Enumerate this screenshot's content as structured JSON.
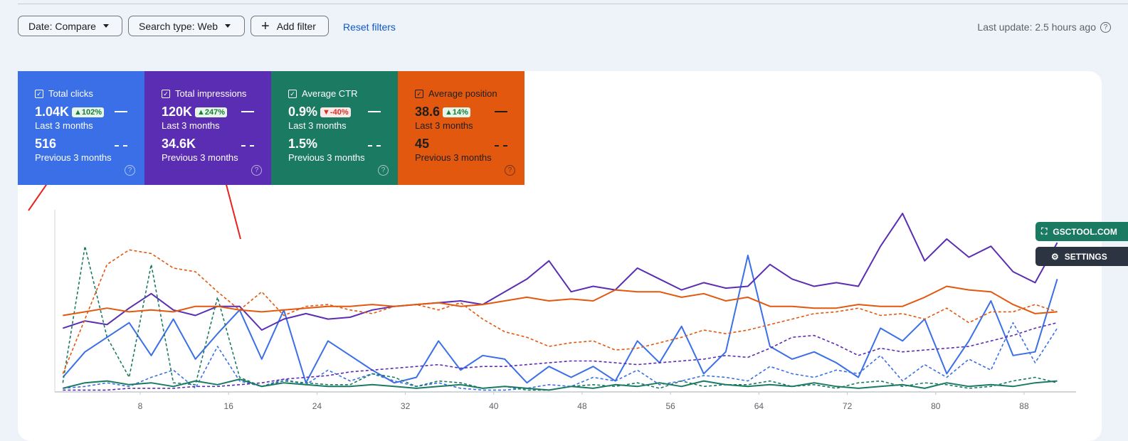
{
  "toolbar": {
    "date_filter": "Date: Compare",
    "search_type": "Search type: Web",
    "add_filter": "Add filter",
    "reset": "Reset filters",
    "last_update": "Last update: 2.5 hours ago"
  },
  "cards": [
    {
      "label": "Total clicks",
      "current": "1.04K",
      "change": "▲102%",
      "direction": "up",
      "current_period": "Last 3 months",
      "previous": "516",
      "previous_period": "Previous 3 months",
      "color": "#3a6fe8",
      "text_color": "#ffffff"
    },
    {
      "label": "Total impressions",
      "current": "120K",
      "change": "▲247%",
      "direction": "up",
      "current_period": "Last 3 months",
      "previous": "34.6K",
      "previous_period": "Previous 3 months",
      "color": "#5b2db3",
      "text_color": "#ffffff"
    },
    {
      "label": "Average CTR",
      "current": "0.9%",
      "change": "▼-40%",
      "direction": "down",
      "current_period": "Last 3 months",
      "previous": "1.5%",
      "previous_period": "Previous 3 months",
      "color": "#1b7a62",
      "text_color": "#ffffff"
    },
    {
      "label": "Average position",
      "current": "38.6",
      "change": "▲14%",
      "direction": "up",
      "current_period": "Last 3 months",
      "previous": "45",
      "previous_period": "Previous 3 months",
      "color": "#e2580e",
      "text_color": "#1f1f1f"
    }
  ],
  "side_buttons": [
    "GSCTOOL.COM",
    "SETTINGS"
  ],
  "chart_data": {
    "type": "line",
    "x": [
      1,
      3,
      5,
      7,
      9,
      11,
      13,
      15,
      17,
      19,
      21,
      23,
      25,
      27,
      29,
      31,
      33,
      35,
      37,
      39,
      41,
      43,
      45,
      47,
      49,
      51,
      53,
      55,
      57,
      59,
      61,
      63,
      65,
      67,
      69,
      71,
      73,
      75,
      77,
      79,
      81,
      83,
      85,
      87,
      89,
      91
    ],
    "xlim": [
      0,
      93
    ],
    "xticks": [
      8,
      16,
      24,
      32,
      40,
      48,
      56,
      64,
      72,
      80,
      88
    ],
    "ylim": [
      0,
      100
    ],
    "series": [
      {
        "color": "#3a6fe8",
        "dashed": false,
        "values": [
          8,
          22,
          30,
          38,
          20,
          40,
          18,
          32,
          45,
          18,
          45,
          5,
          28,
          20,
          12,
          5,
          8,
          28,
          12,
          20,
          18,
          5,
          14,
          8,
          14,
          6,
          28,
          16,
          36,
          10,
          22,
          75,
          25,
          18,
          22,
          16,
          8,
          35,
          28,
          40,
          10,
          28,
          50,
          20,
          22,
          62
        ]
      },
      {
        "color": "#3a6fe8",
        "dashed": true,
        "values": [
          2,
          3,
          5,
          3,
          8,
          12,
          2,
          25,
          6,
          3,
          7,
          4,
          12,
          6,
          10,
          6,
          3,
          5,
          2,
          1,
          1,
          2,
          4,
          3,
          8,
          6,
          12,
          4,
          6,
          9,
          8,
          6,
          14,
          10,
          8,
          12,
          10,
          20,
          6,
          15,
          8,
          18,
          12,
          38,
          16,
          35
        ]
      },
      {
        "color": "#5b2db3",
        "dashed": false,
        "values": [
          35,
          39,
          37,
          46,
          54,
          45,
          42,
          47,
          47,
          34,
          40,
          43,
          40,
          41,
          45,
          47,
          48,
          49,
          50,
          48,
          55,
          62,
          72,
          55,
          58,
          56,
          68,
          62,
          56,
          60,
          57,
          58,
          70,
          62,
          58,
          60,
          58,
          80,
          98,
          72,
          84,
          74,
          80,
          66,
          60,
          82
        ]
      },
      {
        "color": "#5b2db3",
        "dashed": true,
        "values": [
          1,
          1,
          1,
          2,
          2,
          2,
          3,
          3,
          4,
          5,
          7,
          8,
          9,
          11,
          12,
          13,
          14,
          15,
          13,
          14,
          14,
          15,
          16,
          17,
          17,
          16,
          15,
          16,
          17,
          18,
          20,
          19,
          24,
          30,
          31,
          26,
          20,
          24,
          22,
          23,
          24,
          25,
          28,
          31,
          35,
          38
        ]
      },
      {
        "color": "#1b7a62",
        "dashed": false,
        "values": [
          2,
          5,
          6,
          4,
          5,
          3,
          6,
          4,
          7,
          3,
          5,
          4,
          3,
          3,
          4,
          3,
          2,
          3,
          4,
          2,
          3,
          2,
          1,
          3,
          2,
          4,
          3,
          5,
          3,
          6,
          4,
          3,
          4,
          3,
          5,
          3,
          2,
          3,
          4,
          2,
          5,
          3,
          4,
          3,
          5,
          6
        ]
      },
      {
        "color": "#1b7a62",
        "dashed": true,
        "values": [
          5,
          80,
          30,
          8,
          70,
          5,
          4,
          52,
          8,
          3,
          6,
          5,
          4,
          4,
          10,
          8,
          3,
          6,
          5,
          2,
          3,
          1,
          1,
          3,
          4,
          3,
          5,
          2,
          6,
          3,
          4,
          4,
          6,
          3,
          4,
          2,
          5,
          6,
          3,
          5,
          4,
          2,
          3,
          6,
          8,
          5
        ]
      },
      {
        "color": "#e2580e",
        "dashed": false,
        "values": [
          42,
          44,
          46,
          44,
          45,
          44,
          47,
          47,
          45,
          44,
          45,
          46,
          47,
          47,
          48,
          47,
          48,
          49,
          47,
          48,
          50,
          52,
          50,
          51,
          50,
          56,
          55,
          55,
          52,
          54,
          50,
          52,
          47,
          47,
          46,
          46,
          48,
          47,
          47,
          52,
          58,
          56,
          55,
          48,
          43,
          44
        ]
      },
      {
        "color": "#e2580e",
        "dashed": true,
        "values": [
          10,
          40,
          70,
          78,
          76,
          68,
          66,
          55,
          45,
          55,
          42,
          47,
          48,
          45,
          43,
          47,
          48,
          45,
          49,
          40,
          33,
          30,
          25,
          27,
          28,
          23,
          24,
          27,
          30,
          34,
          32,
          34,
          37,
          40,
          43,
          44,
          46,
          42,
          43,
          40,
          46,
          38,
          44,
          44,
          48,
          44
        ]
      }
    ]
  }
}
